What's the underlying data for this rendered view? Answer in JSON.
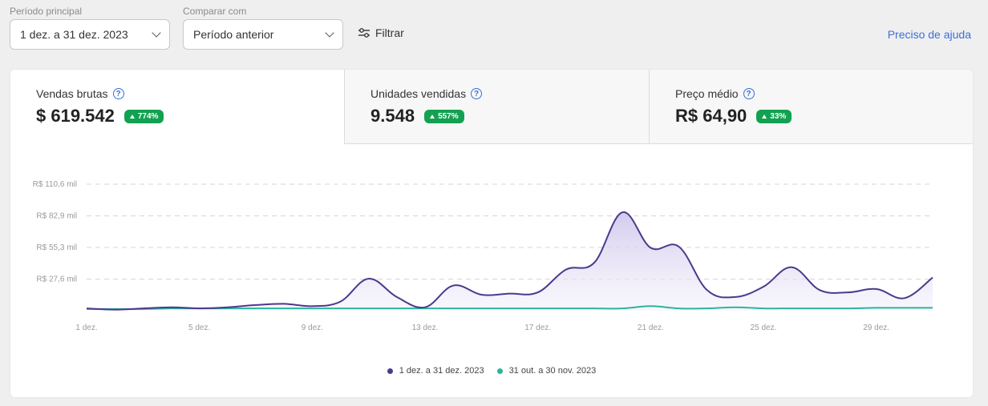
{
  "filters": {
    "main_period": {
      "label": "Período principal",
      "value": "1 dez. a 31 dez. 2023"
    },
    "compare": {
      "label": "Comparar com",
      "value": "Período anterior"
    },
    "filter_label": "Filtrar",
    "help_link": "Preciso de ajuda"
  },
  "kpis": [
    {
      "label": "Vendas brutas",
      "value": "$ 619.542",
      "change": "774%"
    },
    {
      "label": "Unidades vendidas",
      "value": "9.548",
      "change": "557%"
    },
    {
      "label": "Preço médio",
      "value": "R$ 64,90",
      "change": "33%"
    }
  ],
  "colors": {
    "primary_series": "#4b3a8c",
    "primary_fill": "#d9d2ef",
    "comparison_series": "#2bb5a0",
    "badge": "#12a150",
    "link": "#3a6fd8"
  },
  "chart_data": {
    "type": "area",
    "x": [
      1,
      2,
      3,
      4,
      5,
      6,
      7,
      8,
      9,
      10,
      11,
      12,
      13,
      14,
      15,
      16,
      17,
      18,
      19,
      20,
      21,
      22,
      23,
      24,
      25,
      26,
      27,
      28,
      29,
      30,
      31
    ],
    "x_tick_labels": [
      "1 dez.",
      "5 dez.",
      "9 dez.",
      "13 dez.",
      "17 dez.",
      "21 dez.",
      "25 dez.",
      "29 dez."
    ],
    "x_tick_values": [
      1,
      5,
      9,
      13,
      17,
      21,
      25,
      29
    ],
    "y_tick_labels": [
      "R$ 27,6 mil",
      "R$ 55,3 mil",
      "R$ 82,9 mil",
      "R$ 110,6 mil"
    ],
    "y_tick_values": [
      27.6,
      55.3,
      82.9,
      110.6
    ],
    "ylim": [
      0,
      110.6
    ],
    "grid": true,
    "legend_position": "bottom-center",
    "series": [
      {
        "name": "1 dez. a 31 dez. 2023",
        "values": [
          2,
          1,
          2,
          3,
          2,
          3,
          5,
          6,
          4,
          8,
          28,
          12,
          3,
          22,
          14,
          15,
          16,
          36,
          42,
          86,
          55,
          56,
          18,
          12,
          21,
          38,
          18,
          16,
          19,
          11,
          29
        ]
      },
      {
        "name": "31 out. a 30 nov. 2023",
        "values": [
          1.5,
          1.5,
          1.5,
          2,
          2,
          2,
          2,
          2,
          2,
          2,
          2,
          2,
          2,
          2,
          2,
          2,
          2,
          2,
          2,
          2,
          4,
          2,
          2,
          3,
          2,
          2,
          2,
          2,
          2.5,
          2.5,
          2.5
        ]
      }
    ]
  }
}
